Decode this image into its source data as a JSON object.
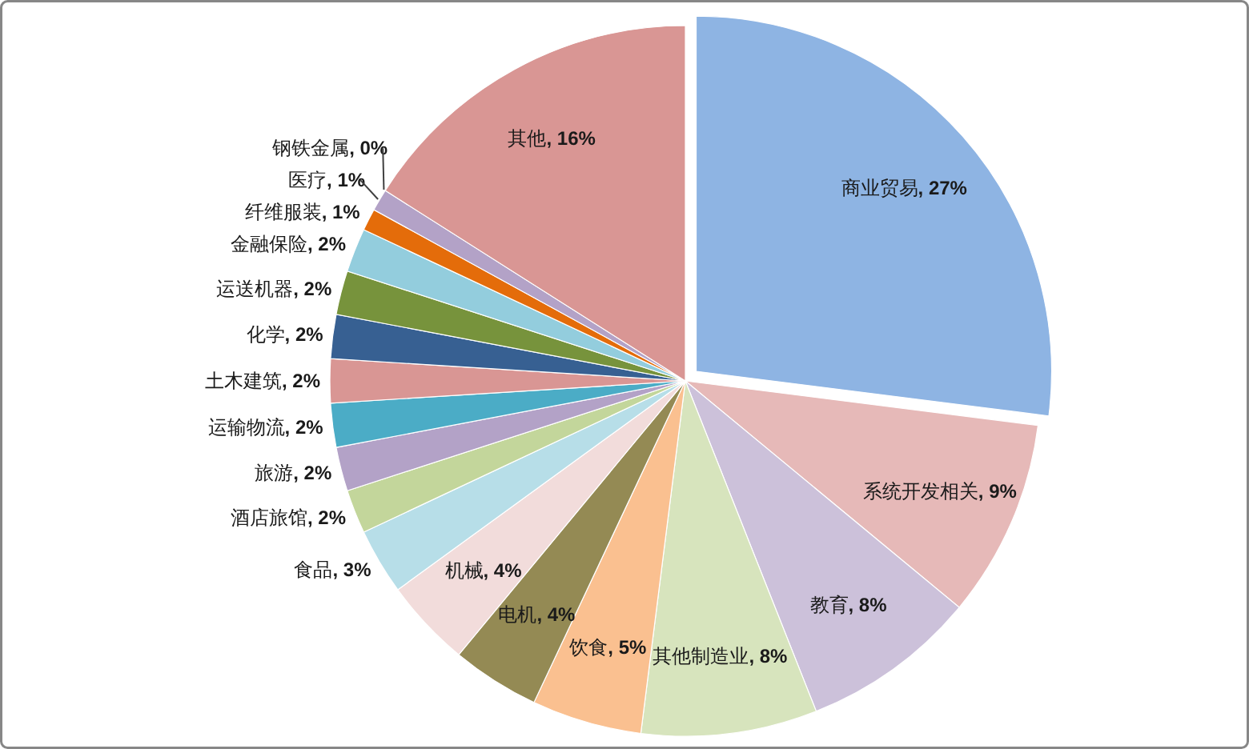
{
  "chart_data": {
    "type": "pie",
    "categories": [
      "商业贸易",
      "系统开发相关",
      "教育",
      "其他制造业",
      "饮食",
      "电机",
      "机械",
      "食品",
      "酒店旅馆",
      "旅游",
      "运输物流",
      "土木建筑",
      "化学",
      "运送机器",
      "金融保险",
      "纤维服装",
      "医疗",
      "钢铁金属",
      "其他"
    ],
    "values": [
      27,
      9,
      8,
      8,
      5,
      4,
      4,
      3,
      2,
      2,
      2,
      2,
      2,
      2,
      2,
      1,
      1,
      0,
      16
    ],
    "colors": [
      "#8eb4e3",
      "#e6b9b8",
      "#ccc1da",
      "#d7e4bd",
      "#fac090",
      "#948a54",
      "#f2dcdb",
      "#b7dee8",
      "#c3d69b",
      "#b3a2c7",
      "#4bacc6",
      "#d99694",
      "#376092",
      "#77933c",
      "#93cddd",
      "#e46c0a",
      "#b3a2c7",
      null,
      "#d99694"
    ],
    "value_labels": [
      ", 27%",
      ", 9%",
      ", 8%",
      ", 8%",
      ", 5%",
      ", 4%",
      ", 4%",
      ", 3%",
      ", 2%",
      ", 2%",
      ", 2%",
      ", 2%",
      ", 2%",
      ", 2%",
      ", 2%",
      ", 1%",
      ", 1%",
      ", 0%",
      ", 16%"
    ]
  }
}
